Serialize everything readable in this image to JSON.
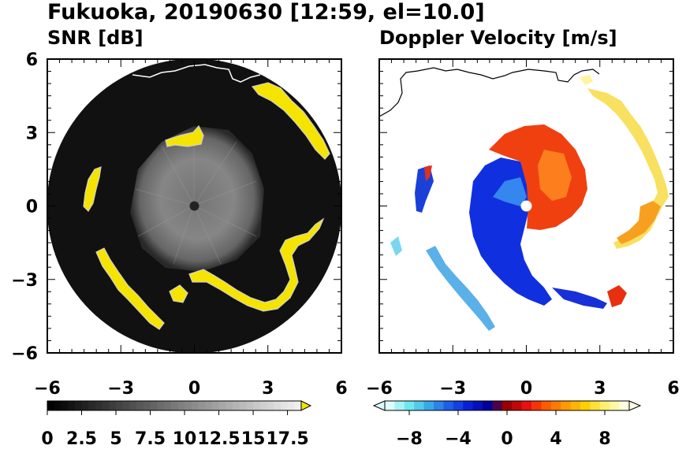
{
  "figure_title": "Fukuoka, 20190630 [12:59, el=10.0]",
  "chart_data": [
    {
      "type": "heatmap",
      "title": "SNR [dB]",
      "xlim": [
        -6,
        6
      ],
      "ylim": [
        -6,
        6
      ],
      "x_ticks": [
        "−6",
        "−3",
        "0",
        "3",
        "6"
      ],
      "y_ticks": [
        "6",
        "3",
        "0",
        "−3",
        "−6"
      ],
      "x_tick_values": [
        -6,
        -3,
        0,
        3,
        6
      ],
      "y_tick_values": [
        6,
        3,
        0,
        -3,
        -6
      ],
      "range_limit_km": 6,
      "colorbar": {
        "min": 0,
        "max": 18.5,
        "step": 0.5,
        "extend": "max",
        "tick_labels": [
          "0",
          "2.5",
          "5",
          "7.5",
          "10",
          "12.5",
          "15",
          "17.5"
        ],
        "tick_values": [
          0,
          2.5,
          5,
          7.5,
          10,
          12.5,
          15,
          17.5
        ],
        "low_color": "#000000",
        "high_color": "#f0f0f0",
        "over_color": "#f5e400"
      },
      "colors": {
        "background": "#101010",
        "inner_echo": "#8a8a8a",
        "strong_echo": "#f5e400"
      }
    },
    {
      "type": "heatmap",
      "title": "Doppler Velocity [m/s]",
      "xlim": [
        -6,
        6
      ],
      "ylim": [
        -6,
        6
      ],
      "x_ticks": [
        "−6",
        "−3",
        "0",
        "3",
        "6"
      ],
      "x_tick_values": [
        -6,
        -3,
        0,
        3,
        6
      ],
      "y_tick_values": [
        6,
        3,
        0,
        -3,
        -6
      ],
      "colorbar": {
        "min": -10,
        "max": 10,
        "step": 0.8,
        "extend": "both",
        "tick_labels": [
          "−8",
          "−4",
          "0",
          "4",
          "8"
        ],
        "tick_values": [
          -8,
          -4,
          0,
          4,
          8
        ],
        "stops": [
          "#dffcff",
          "#6ee8f0",
          "#38a9e8",
          "#1d5fe8",
          "#0a20d8",
          "#00009a",
          "#9a0000",
          "#e81010",
          "#ff5a00",
          "#ff9a00",
          "#ffd000",
          "#fff070",
          "#fffde0"
        ]
      },
      "colors": {
        "approaching": "#1030e0",
        "receding": "#f04010",
        "far_receding": "#f8e060"
      }
    }
  ]
}
